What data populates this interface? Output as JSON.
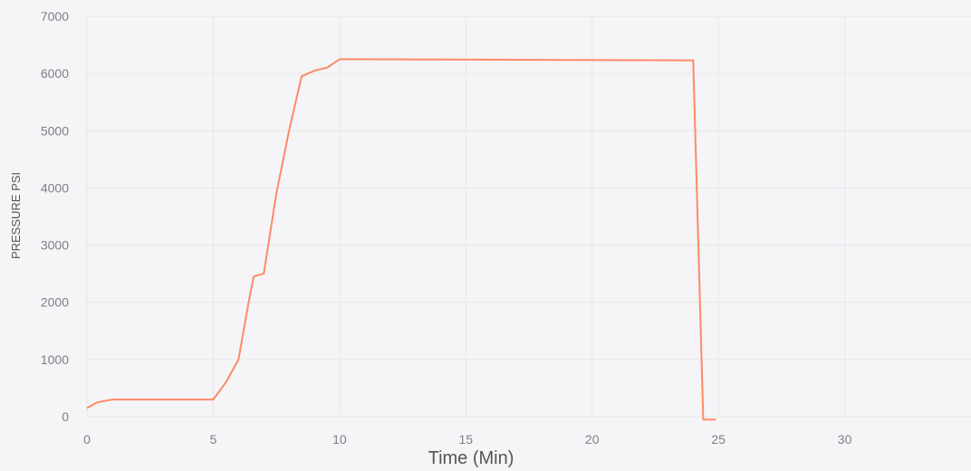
{
  "chart_data": {
    "type": "line",
    "xlabel": "Time (Min)",
    "ylabel": "PRESSURE PSI",
    "xlim": [
      0,
      35
    ],
    "ylim": [
      0,
      7000
    ],
    "xticks": [
      0,
      5,
      10,
      15,
      20,
      25,
      30
    ],
    "yticks": [
      0,
      1000,
      2000,
      3000,
      4000,
      5000,
      6000,
      7000
    ],
    "grid": true,
    "legend": "none",
    "line_color": "#ff8a66",
    "series": [
      {
        "x": [
          0,
          0.4,
          1,
          5,
          5.5,
          6,
          6.4,
          6.6,
          7,
          7.5,
          8,
          8.5,
          9,
          9.5,
          10,
          24,
          24.4,
          24.9
        ],
        "y": [
          150,
          250,
          300,
          300,
          600,
          1000,
          2000,
          2450,
          2500,
          3900,
          5000,
          5950,
          6050,
          6100,
          6250,
          6230,
          -50,
          -50
        ]
      }
    ]
  }
}
